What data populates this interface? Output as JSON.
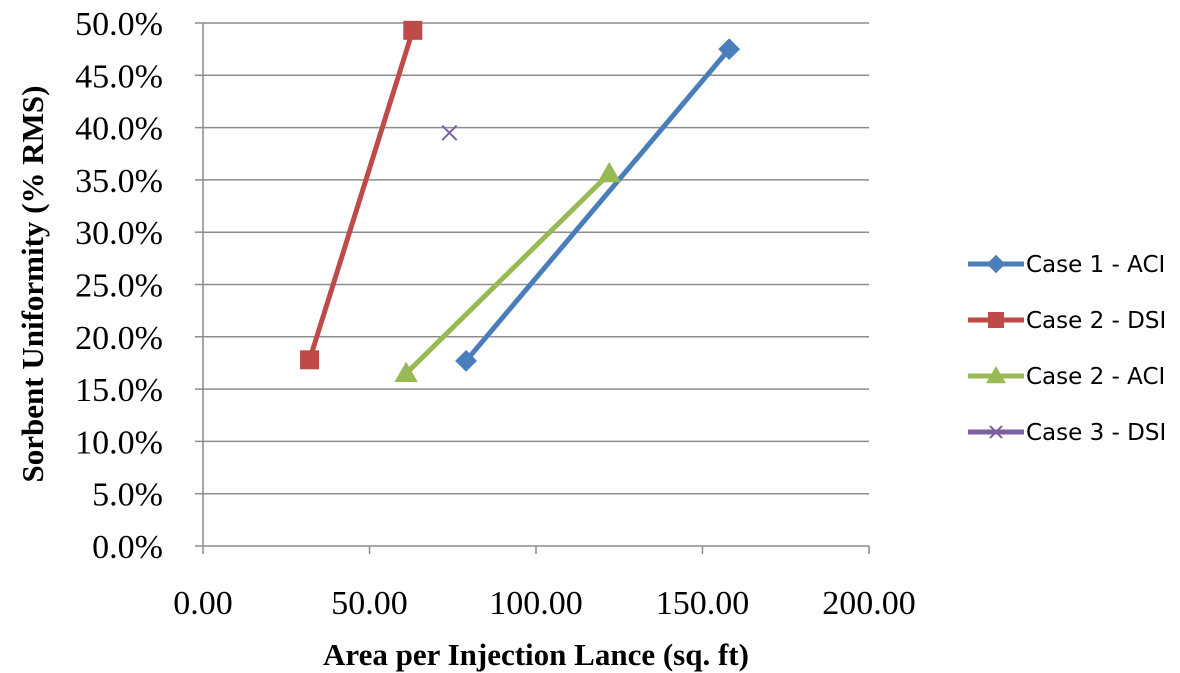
{
  "chart_data": {
    "type": "scatter",
    "title": "",
    "xlabel": "Area per Injection Lance (sq. ft)",
    "ylabel": "Sorbent Uniformity (% RMS)",
    "xlim": [
      0,
      200
    ],
    "ylim": [
      0,
      0.5
    ],
    "grid": "horizontal",
    "legend_position": "right",
    "x_tick_labels": [
      "0.00",
      "50.00",
      "100.00",
      "150.00",
      "200.00"
    ],
    "y_tick_labels": [
      "0.0%",
      "5.0%",
      "10.0%",
      "15.0%",
      "20.0%",
      "25.0%",
      "30.0%",
      "35.0%",
      "40.0%",
      "45.0%",
      "50.0%"
    ],
    "series": [
      {
        "name": "Case 1 - ACI",
        "color": "#4a7ebb",
        "marker": "diamond",
        "line": true,
        "points": [
          [
            79,
            0.177
          ],
          [
            158,
            0.475
          ]
        ]
      },
      {
        "name": "Case 2 - DSI",
        "color": "#be4b48",
        "marker": "square",
        "line": true,
        "points": [
          [
            32,
            0.178
          ],
          [
            63,
            0.493
          ]
        ]
      },
      {
        "name": "Case 2 - ACI",
        "color": "#98b954",
        "marker": "triangle",
        "line": true,
        "points": [
          [
            61,
            0.165
          ],
          [
            122,
            0.356
          ]
        ]
      },
      {
        "name": "Case 3 - DSI",
        "color": "#7d60a0",
        "marker": "x",
        "line": false,
        "points": [
          [
            74,
            0.395
          ]
        ]
      }
    ]
  }
}
